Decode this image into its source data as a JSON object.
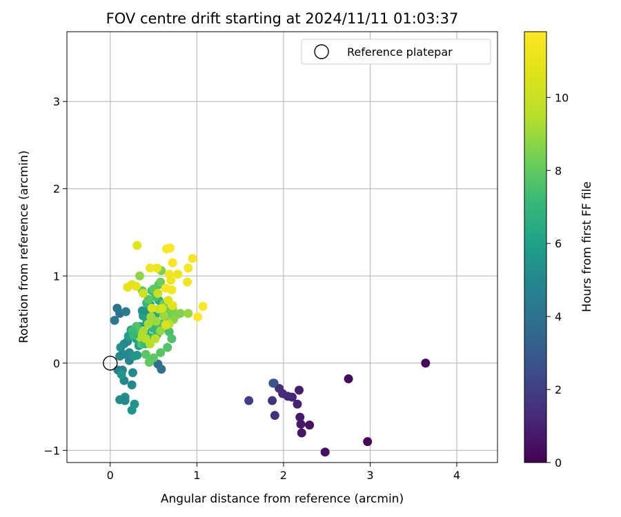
{
  "chart_data": {
    "type": "scatter",
    "title": "FOV centre drift starting at 2024/11/11 01:03:37",
    "xlabel": "Angular distance from reference (arcmin)",
    "ylabel": "Rotation from reference (arcmin)",
    "xlim": [
      -0.5,
      4.47
    ],
    "ylim": [
      -1.14,
      3.8
    ],
    "xticks": [
      0,
      1,
      2,
      3,
      4
    ],
    "yticks": [
      -1,
      0,
      1,
      2,
      3
    ],
    "grid": true,
    "legend": {
      "location": "top-right",
      "entries": [
        "Reference platepar"
      ]
    },
    "reference_point": {
      "x": 0,
      "y": 0,
      "label": "Reference platepar"
    },
    "colorbar": {
      "label": "Hours from first FF file",
      "colormap": "viridis",
      "range": [
        0,
        11.8
      ],
      "ticks": [
        0,
        2,
        4,
        6,
        8,
        10
      ]
    },
    "points": [
      {
        "x": 3.64,
        "y": 0.0,
        "c": 0.1
      },
      {
        "x": 2.75,
        "y": -0.18,
        "c": 0.3
      },
      {
        "x": 2.97,
        "y": -0.9,
        "c": 0.2
      },
      {
        "x": 2.48,
        "y": -1.02,
        "c": 0.4
      },
      {
        "x": 2.3,
        "y": -0.71,
        "c": 0.5
      },
      {
        "x": 2.21,
        "y": -0.8,
        "c": 0.6
      },
      {
        "x": 2.2,
        "y": -0.7,
        "c": 0.7
      },
      {
        "x": 2.19,
        "y": -0.62,
        "c": 0.8
      },
      {
        "x": 2.18,
        "y": -0.31,
        "c": 0.9
      },
      {
        "x": 2.16,
        "y": -0.47,
        "c": 1.0
      },
      {
        "x": 2.1,
        "y": -0.39,
        "c": 1.1
      },
      {
        "x": 2.05,
        "y": -0.38,
        "c": 1.2
      },
      {
        "x": 1.99,
        "y": -0.35,
        "c": 1.3
      },
      {
        "x": 1.95,
        "y": -0.29,
        "c": 1.4
      },
      {
        "x": 1.9,
        "y": -0.6,
        "c": 1.5
      },
      {
        "x": 1.87,
        "y": -0.43,
        "c": 1.6
      },
      {
        "x": 1.89,
        "y": -0.23,
        "c": 1.8
      },
      {
        "x": 1.6,
        "y": -0.43,
        "c": 2.0
      },
      {
        "x": 1.88,
        "y": -0.23,
        "c": 2.8
      },
      {
        "x": 0.55,
        "y": -0.01,
        "c": 3.8
      },
      {
        "x": 0.59,
        "y": -0.07,
        "c": 3.9
      },
      {
        "x": 0.08,
        "y": 0.63,
        "c": 4.1
      },
      {
        "x": 0.05,
        "y": 0.49,
        "c": 4.2
      },
      {
        "x": 0.11,
        "y": 0.57,
        "c": 4.0
      },
      {
        "x": 0.18,
        "y": 0.59,
        "c": 4.5
      },
      {
        "x": 0.09,
        "y": -0.08,
        "c": 4.6
      },
      {
        "x": 0.14,
        "y": -0.08,
        "c": 4.8
      },
      {
        "x": 0.16,
        "y": -0.2,
        "c": 4.9
      },
      {
        "x": 0.25,
        "y": -0.25,
        "c": 5.0
      },
      {
        "x": 0.26,
        "y": -0.11,
        "c": 5.1
      },
      {
        "x": 0.11,
        "y": -0.42,
        "c": 5.2
      },
      {
        "x": 0.17,
        "y": -0.39,
        "c": 5.3
      },
      {
        "x": 0.17,
        "y": -0.43,
        "c": 5.0
      },
      {
        "x": 0.28,
        "y": -0.47,
        "c": 5.4
      },
      {
        "x": 0.25,
        "y": -0.54,
        "c": 5.5
      },
      {
        "x": 0.13,
        "y": -0.13,
        "c": 5.6
      },
      {
        "x": 0.11,
        "y": 0.08,
        "c": 5.2
      },
      {
        "x": 0.12,
        "y": 0.18,
        "c": 5.4
      },
      {
        "x": 0.16,
        "y": 0.22,
        "c": 5.3
      },
      {
        "x": 0.2,
        "y": 0.25,
        "c": 5.0
      },
      {
        "x": 0.15,
        "y": 0.1,
        "c": 4.9
      },
      {
        "x": 0.22,
        "y": 0.03,
        "c": 4.7
      },
      {
        "x": 0.22,
        "y": 0.12,
        "c": 5.1
      },
      {
        "x": 0.27,
        "y": 0.08,
        "c": 5.5
      },
      {
        "x": 0.31,
        "y": 0.09,
        "c": 5.7
      },
      {
        "x": 0.33,
        "y": 0.2,
        "c": 5.8
      },
      {
        "x": 0.3,
        "y": 0.28,
        "c": 5.9
      },
      {
        "x": 0.21,
        "y": 0.31,
        "c": 6.0
      },
      {
        "x": 0.24,
        "y": 0.38,
        "c": 6.1
      },
      {
        "x": 0.34,
        "y": 0.42,
        "c": 6.2
      },
      {
        "x": 0.4,
        "y": 0.35,
        "c": 6.3
      },
      {
        "x": 0.38,
        "y": 0.54,
        "c": 6.0
      },
      {
        "x": 0.42,
        "y": 0.46,
        "c": 5.8
      },
      {
        "x": 0.44,
        "y": 0.6,
        "c": 5.6
      },
      {
        "x": 0.37,
        "y": 0.6,
        "c": 5.5
      },
      {
        "x": 0.46,
        "y": 0.67,
        "c": 5.9
      },
      {
        "x": 0.52,
        "y": 0.55,
        "c": 6.4
      },
      {
        "x": 0.56,
        "y": 0.72,
        "c": 6.6
      },
      {
        "x": 0.6,
        "y": 0.58,
        "c": 6.8
      },
      {
        "x": 0.49,
        "y": 0.4,
        "c": 7.0
      },
      {
        "x": 0.45,
        "y": 0.3,
        "c": 7.1
      },
      {
        "x": 0.54,
        "y": 0.33,
        "c": 7.2
      },
      {
        "x": 0.57,
        "y": 0.44,
        "c": 7.3
      },
      {
        "x": 0.63,
        "y": 0.48,
        "c": 7.4
      },
      {
        "x": 0.68,
        "y": 0.36,
        "c": 7.5
      },
      {
        "x": 0.71,
        "y": 0.28,
        "c": 7.6
      },
      {
        "x": 0.66,
        "y": 0.18,
        "c": 7.7
      },
      {
        "x": 0.58,
        "y": 0.12,
        "c": 7.8
      },
      {
        "x": 0.5,
        "y": 0.06,
        "c": 7.9
      },
      {
        "x": 0.45,
        "y": 0.01,
        "c": 8.0
      },
      {
        "x": 0.41,
        "y": 0.1,
        "c": 7.8
      },
      {
        "x": 0.36,
        "y": 0.22,
        "c": 7.6
      },
      {
        "x": 0.32,
        "y": 0.35,
        "c": 7.4
      },
      {
        "x": 0.4,
        "y": 0.22,
        "c": 7.2
      },
      {
        "x": 0.42,
        "y": 0.69,
        "c": 7.0
      },
      {
        "x": 0.48,
        "y": 0.83,
        "c": 7.3
      },
      {
        "x": 0.52,
        "y": 0.76,
        "c": 7.5
      },
      {
        "x": 0.56,
        "y": 0.9,
        "c": 7.7
      },
      {
        "x": 0.5,
        "y": 0.85,
        "c": 7.9
      },
      {
        "x": 0.62,
        "y": 0.68,
        "c": 8.1
      },
      {
        "x": 0.64,
        "y": 0.6,
        "c": 8.2
      },
      {
        "x": 0.69,
        "y": 0.56,
        "c": 8.3
      },
      {
        "x": 0.72,
        "y": 0.62,
        "c": 8.4
      },
      {
        "x": 0.76,
        "y": 0.55,
        "c": 8.5
      },
      {
        "x": 0.81,
        "y": 0.57,
        "c": 8.6
      },
      {
        "x": 0.73,
        "y": 0.5,
        "c": 8.7
      },
      {
        "x": 0.66,
        "y": 0.44,
        "c": 8.8
      },
      {
        "x": 0.58,
        "y": 0.37,
        "c": 8.9
      },
      {
        "x": 0.53,
        "y": 0.48,
        "c": 9.0
      },
      {
        "x": 0.47,
        "y": 0.53,
        "c": 9.1
      },
      {
        "x": 0.44,
        "y": 0.45,
        "c": 9.2
      },
      {
        "x": 0.38,
        "y": 0.37,
        "c": 9.3
      },
      {
        "x": 0.34,
        "y": 0.3,
        "c": 9.4
      },
      {
        "x": 0.41,
        "y": 0.28,
        "c": 9.5
      },
      {
        "x": 0.46,
        "y": 0.22,
        "c": 9.6
      },
      {
        "x": 0.52,
        "y": 0.28,
        "c": 9.7
      },
      {
        "x": 0.56,
        "y": 0.62,
        "c": 9.8
      },
      {
        "x": 0.62,
        "y": 0.54,
        "c": 9.0
      },
      {
        "x": 0.68,
        "y": 0.45,
        "c": 9.6
      },
      {
        "x": 0.9,
        "y": 0.57,
        "c": 8.9
      },
      {
        "x": 0.34,
        "y": 1.0,
        "c": 8.8
      },
      {
        "x": 0.59,
        "y": 1.06,
        "c": 8.5
      },
      {
        "x": 0.58,
        "y": 0.93,
        "c": 8.2
      },
      {
        "x": 0.37,
        "y": 0.83,
        "c": 7.9
      },
      {
        "x": 0.44,
        "y": 0.73,
        "c": 7.8
      },
      {
        "x": 0.3,
        "y": 0.42,
        "c": 7.6
      },
      {
        "x": 0.26,
        "y": 0.37,
        "c": 7.3
      },
      {
        "x": 0.27,
        "y": 0.32,
        "c": 7.1
      },
      {
        "x": 0.55,
        "y": 0.8,
        "c": 10.0
      },
      {
        "x": 0.38,
        "y": 0.8,
        "c": 10.2
      },
      {
        "x": 0.48,
        "y": 0.63,
        "c": 10.4
      },
      {
        "x": 0.6,
        "y": 0.63,
        "c": 10.3
      },
      {
        "x": 0.67,
        "y": 0.72,
        "c": 10.6
      },
      {
        "x": 0.72,
        "y": 0.66,
        "c": 10.8
      },
      {
        "x": 0.64,
        "y": 0.44,
        "c": 10.5
      },
      {
        "x": 0.25,
        "y": 0.9,
        "c": 10.7
      },
      {
        "x": 0.2,
        "y": 0.87,
        "c": 10.9
      },
      {
        "x": 0.3,
        "y": 0.88,
        "c": 11.0
      },
      {
        "x": 0.46,
        "y": 1.09,
        "c": 11.2
      },
      {
        "x": 0.54,
        "y": 1.09,
        "c": 11.3
      },
      {
        "x": 0.68,
        "y": 1.02,
        "c": 11.4
      },
      {
        "x": 0.78,
        "y": 1.02,
        "c": 11.1
      },
      {
        "x": 0.9,
        "y": 1.09,
        "c": 11.5
      },
      {
        "x": 0.95,
        "y": 1.2,
        "c": 11.6
      },
      {
        "x": 0.89,
        "y": 0.93,
        "c": 11.4
      },
      {
        "x": 0.7,
        "y": 0.95,
        "c": 11.3
      },
      {
        "x": 0.72,
        "y": 1.15,
        "c": 11.6
      },
      {
        "x": 0.65,
        "y": 1.31,
        "c": 11.7
      },
      {
        "x": 0.69,
        "y": 1.32,
        "c": 11.8
      },
      {
        "x": 0.31,
        "y": 1.35,
        "c": 10.8
      },
      {
        "x": 1.07,
        "y": 0.65,
        "c": 11.7
      },
      {
        "x": 1.01,
        "y": 0.53,
        "c": 11.8
      },
      {
        "x": 0.64,
        "y": 0.86,
        "c": 11.6
      },
      {
        "x": 0.71,
        "y": 0.84,
        "c": 11.5
      }
    ]
  }
}
